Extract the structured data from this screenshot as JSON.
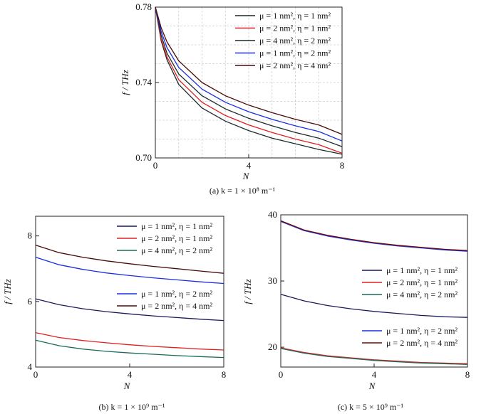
{
  "chart_data": [
    {
      "type": "line",
      "caption": "(a) k = 1 × 10⁸ m⁻¹",
      "xlabel": "N",
      "ylabel": "f / THz",
      "xlim": [
        0,
        8
      ],
      "ylim": [
        0.7,
        0.78
      ],
      "xticks": [
        "0",
        "4",
        "8"
      ],
      "yticks": [
        "0.70",
        "0.74",
        "0.78"
      ],
      "grid": true,
      "legend_position": "top-right",
      "series": [
        {
          "name": "μ = 1 nm², η = 1 nm²",
          "color": "#1a2a2a",
          "x": [
            0,
            0.25,
            0.5,
            1,
            2,
            3,
            4,
            5,
            6,
            7,
            8
          ],
          "y": [
            0.78,
            0.762,
            0.752,
            0.739,
            0.7265,
            0.7195,
            0.7145,
            0.7105,
            0.7075,
            0.7045,
            0.702
          ]
        },
        {
          "name": "μ = 2 nm², η = 1 nm²",
          "color": "#e02020",
          "x": [
            0,
            0.25,
            0.5,
            1,
            2,
            3,
            4,
            5,
            6,
            7,
            8
          ],
          "y": [
            0.78,
            0.763,
            0.7535,
            0.7415,
            0.7295,
            0.7225,
            0.7175,
            0.7135,
            0.71,
            0.707,
            0.7025
          ]
        },
        {
          "name": "μ = 4 nm², η = 2 nm²",
          "color": "#1a2a2a",
          "x": [
            0,
            0.25,
            0.5,
            1,
            2,
            3,
            4,
            5,
            6,
            7,
            8
          ],
          "y": [
            0.78,
            0.765,
            0.7555,
            0.7445,
            0.733,
            0.726,
            0.721,
            0.717,
            0.7135,
            0.7105,
            0.706
          ]
        },
        {
          "name": "μ = 1 nm², η = 2 nm²",
          "color": "#1a2ee0",
          "x": [
            0,
            0.25,
            0.5,
            1,
            2,
            3,
            4,
            5,
            6,
            7,
            8
          ],
          "y": [
            0.78,
            0.767,
            0.7585,
            0.748,
            0.7365,
            0.7295,
            0.7245,
            0.7205,
            0.717,
            0.714,
            0.709
          ]
        },
        {
          "name": "μ = 2 nm², η = 4 nm²",
          "color": "#4a0a0a",
          "x": [
            0,
            0.25,
            0.5,
            1,
            2,
            3,
            4,
            5,
            6,
            7,
            8
          ],
          "y": [
            0.78,
            0.769,
            0.7615,
            0.7515,
            0.74,
            0.733,
            0.728,
            0.724,
            0.7205,
            0.7175,
            0.7125
          ]
        }
      ]
    },
    {
      "type": "line",
      "caption": "(b) k = 1 × 10⁹ m⁻¹",
      "xlabel": "N",
      "ylabel": "f / THz",
      "xlim": [
        0,
        8
      ],
      "ylim": [
        4,
        8.6
      ],
      "xticks": [
        "0",
        "4",
        "8"
      ],
      "yticks": [
        "4",
        "6",
        "8"
      ],
      "grid": false,
      "legend_position": "top-right, split",
      "series": [
        {
          "name": "μ = 1 nm², η = 1 nm²",
          "color": "#1a1a5a",
          "x": [
            0,
            1,
            2,
            3,
            4,
            5,
            6,
            7,
            8
          ],
          "y": [
            6.08,
            5.9,
            5.78,
            5.69,
            5.62,
            5.56,
            5.51,
            5.46,
            5.42
          ]
        },
        {
          "name": "μ = 2 nm², η = 1 nm²",
          "color": "#e02020",
          "x": [
            0,
            1,
            2,
            3,
            4,
            5,
            6,
            7,
            8
          ],
          "y": [
            5.05,
            4.9,
            4.81,
            4.74,
            4.68,
            4.63,
            4.59,
            4.55,
            4.52
          ]
        },
        {
          "name": "μ = 4 nm², η = 2 nm²",
          "color": "#1a6a5a",
          "x": [
            0,
            1,
            2,
            3,
            4,
            5,
            6,
            7,
            8
          ],
          "y": [
            4.82,
            4.65,
            4.55,
            4.48,
            4.43,
            4.39,
            4.35,
            4.32,
            4.29
          ]
        },
        {
          "name": "μ = 1 nm², η = 2 nm²",
          "color": "#1a2ee0",
          "x": [
            0,
            1,
            2,
            3,
            4,
            5,
            6,
            7,
            8
          ],
          "y": [
            7.35,
            7.12,
            6.98,
            6.87,
            6.79,
            6.72,
            6.66,
            6.6,
            6.55
          ]
        },
        {
          "name": "μ = 2 nm², η = 4 nm²",
          "color": "#4a0a0a",
          "x": [
            0,
            1,
            2,
            3,
            4,
            5,
            6,
            7,
            8
          ],
          "y": [
            7.72,
            7.49,
            7.35,
            7.24,
            7.15,
            7.07,
            7.0,
            6.93,
            6.86
          ]
        }
      ]
    },
    {
      "type": "line",
      "caption": "(c) k = 5 × 10⁹ m⁻¹",
      "xlabel": "N",
      "ylabel": "f / THz",
      "xlim": [
        0,
        8
      ],
      "ylim": [
        17,
        40
      ],
      "xticks": [
        "0",
        "4",
        "8"
      ],
      "yticks": [
        "20",
        "30",
        "40"
      ],
      "grid": false,
      "legend_position": "right, split",
      "series": [
        {
          "name": "μ = 1 nm², η = 1 nm²",
          "color": "#1a1a5a",
          "x": [
            0,
            1,
            2,
            3,
            4,
            5,
            6,
            7,
            8
          ],
          "y": [
            28.0,
            27.0,
            26.3,
            25.8,
            25.4,
            25.1,
            24.8,
            24.6,
            24.5
          ]
        },
        {
          "name": "μ = 2 nm², η = 1 nm²",
          "color": "#e02020",
          "x": [
            0,
            1,
            2,
            3,
            4,
            5,
            6,
            7,
            8
          ],
          "y": [
            19.9,
            19.2,
            18.7,
            18.4,
            18.1,
            17.9,
            17.7,
            17.6,
            17.5
          ]
        },
        {
          "name": "μ = 4 nm², η = 2 nm²",
          "color": "#1a6a5a",
          "x": [
            0,
            1,
            2,
            3,
            4,
            5,
            6,
            7,
            8
          ],
          "y": [
            19.8,
            19.1,
            18.6,
            18.3,
            18.0,
            17.8,
            17.6,
            17.5,
            17.4
          ]
        },
        {
          "name": "μ = 1 nm², η = 2 nm²",
          "color": "#1a2ee0",
          "x": [
            0,
            1,
            2,
            3,
            4,
            5,
            6,
            7,
            8
          ],
          "y": [
            39.0,
            37.6,
            36.8,
            36.2,
            35.7,
            35.3,
            35.0,
            34.7,
            34.5
          ]
        },
        {
          "name": "μ = 2 nm², η = 4 nm²",
          "color": "#6a0a0a",
          "x": [
            0,
            1,
            2,
            3,
            4,
            5,
            6,
            7,
            8
          ],
          "y": [
            39.1,
            37.7,
            36.9,
            36.3,
            35.8,
            35.4,
            35.1,
            34.8,
            34.6
          ]
        }
      ]
    }
  ]
}
